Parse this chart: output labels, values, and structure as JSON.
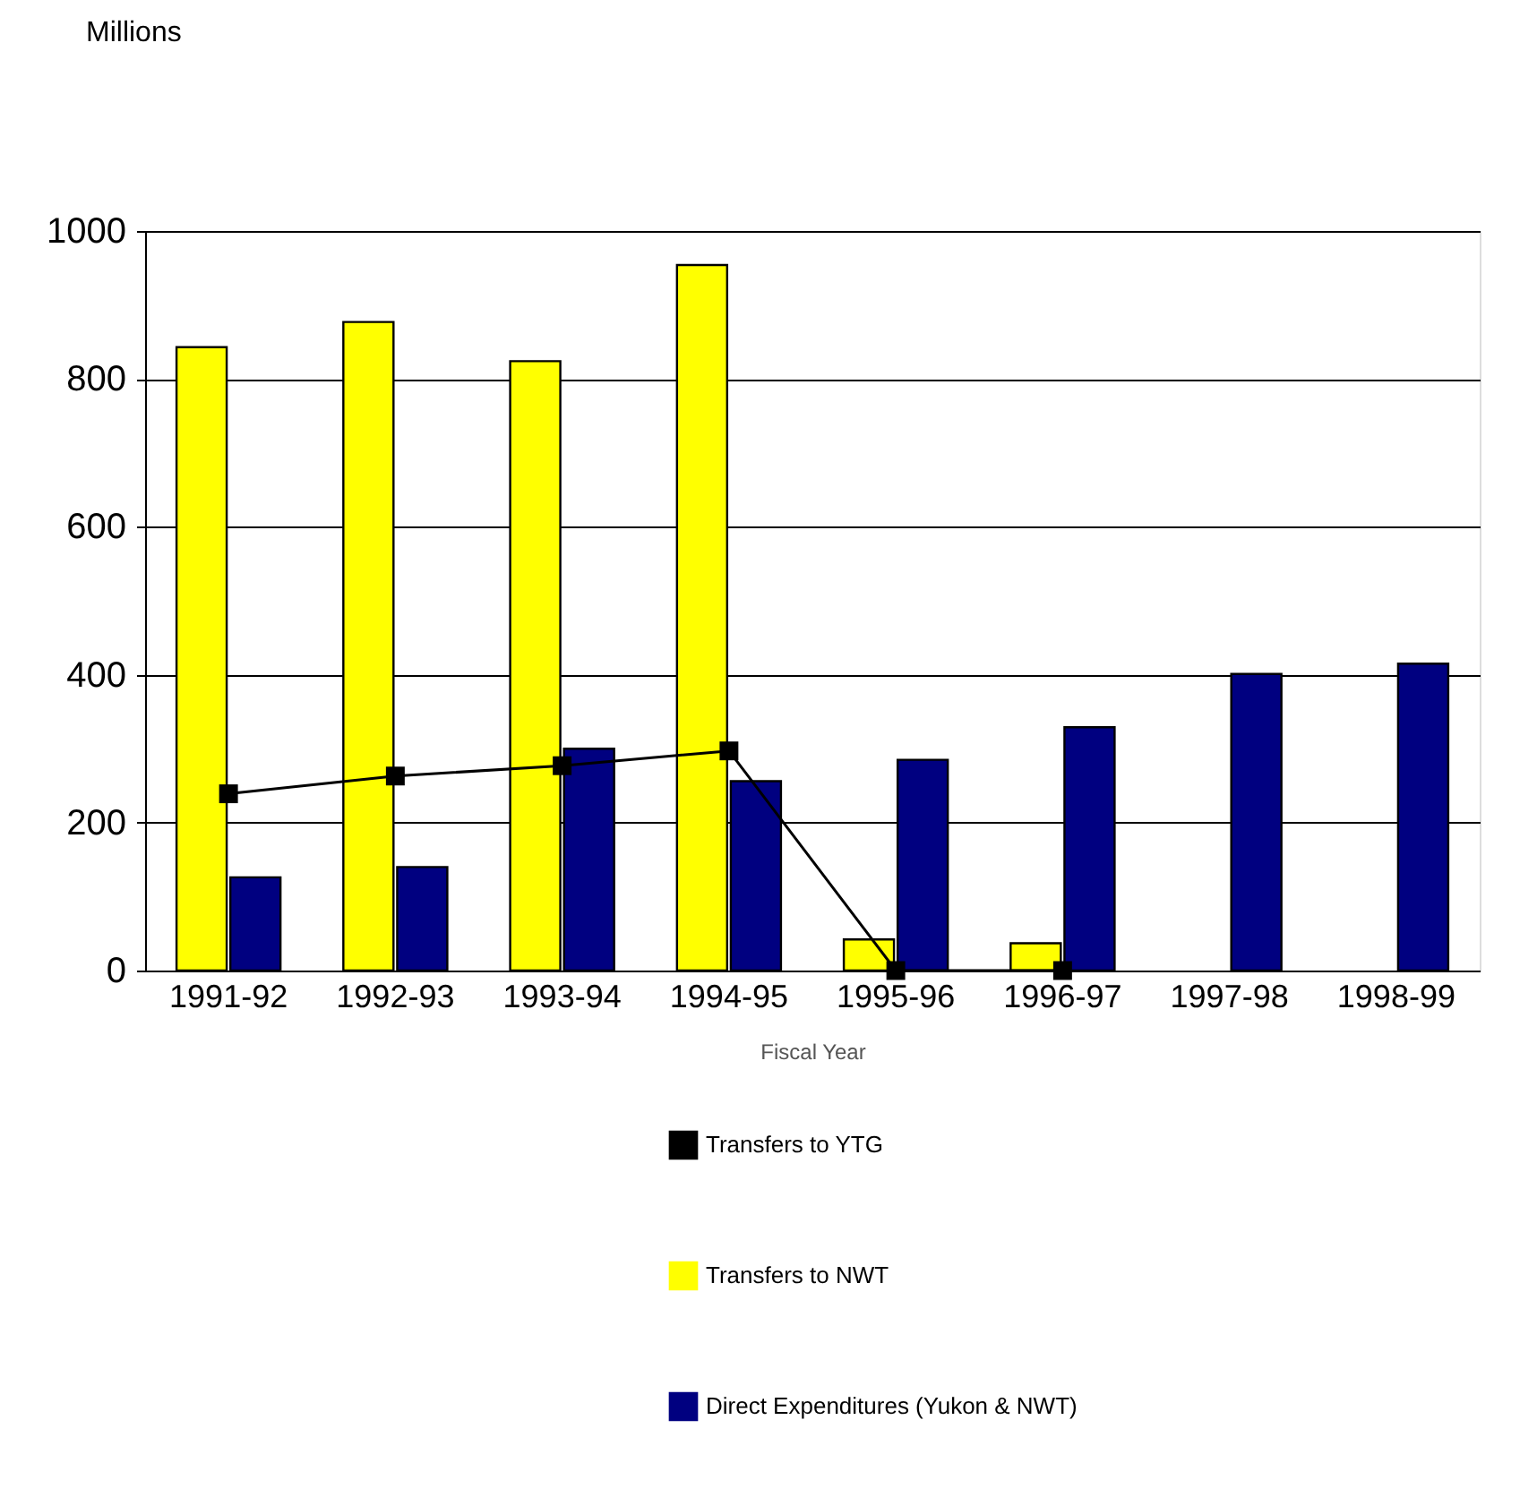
{
  "chart_data": {
    "type": "bar",
    "xlabel": "Fiscal Year",
    "annotations": [
      "Millions"
    ],
    "categories": [
      "1991-92",
      "1992-93",
      "1993-94",
      "1994-95",
      "1995-96",
      "1996-97",
      "1997-98",
      "1998-99"
    ],
    "series": [
      {
        "name": "Transfers to YTG",
        "type": "line",
        "color": "#000000",
        "values": [
          239,
          263,
          277,
          297,
          0,
          0,
          null,
          null
        ]
      },
      {
        "name": "Transfers to NWT",
        "color": "#ffff00",
        "values": [
          843,
          877,
          824,
          954,
          42,
          37,
          null,
          null
        ]
      },
      {
        "name": "Direct Expenditures (Yukon & NWT)",
        "color": "#000080",
        "values": [
          126,
          140,
          300,
          256,
          285,
          329,
          401,
          415
        ]
      }
    ],
    "ylim": [
      0,
      1000
    ],
    "yticks": [
      0,
      200,
      400,
      600,
      800,
      {
        "value": 1000,
        "label": "1000"
      }
    ],
    "grid": "y",
    "legend": "bottom",
    "marker": "square"
  }
}
